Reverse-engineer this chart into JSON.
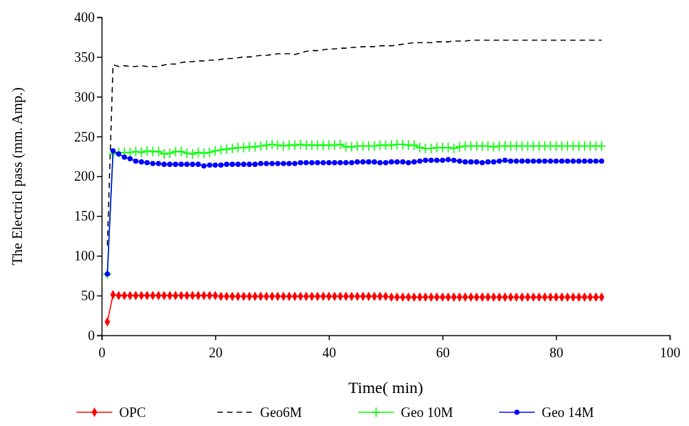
{
  "chart_data": {
    "type": "line",
    "xlabel": "Time( min)",
    "ylabel": "The Electricl pass (mm. Amp.)",
    "x": [
      1,
      2,
      3,
      4,
      5,
      6,
      7,
      8,
      9,
      10,
      11,
      12,
      13,
      14,
      15,
      16,
      17,
      18,
      19,
      20,
      21,
      22,
      23,
      24,
      25,
      26,
      27,
      28,
      29,
      30,
      31,
      32,
      33,
      34,
      35,
      36,
      37,
      38,
      39,
      40,
      41,
      42,
      43,
      44,
      45,
      46,
      47,
      48,
      49,
      50,
      51,
      52,
      53,
      54,
      55,
      56,
      57,
      58,
      59,
      60,
      61,
      62,
      63,
      64,
      65,
      66,
      67,
      68,
      69,
      70,
      71,
      72,
      73,
      74,
      75,
      76,
      77,
      78,
      79,
      80,
      81,
      82,
      83,
      84,
      85,
      86,
      87,
      88
    ],
    "xlim": [
      0,
      100
    ],
    "xticks": [
      0,
      20,
      40,
      60,
      80,
      100
    ],
    "ylim": [
      0,
      400
    ],
    "yticks": [
      0,
      50,
      100,
      150,
      200,
      250,
      300,
      350,
      400
    ],
    "grid": false,
    "legend": "bottom",
    "series": [
      {
        "name": "OPC",
        "color": "#ff0000",
        "marker": "diamond",
        "line_style": "solid",
        "values": [
          17,
          51,
          50,
          50,
          50,
          50,
          50,
          50,
          50,
          50,
          50,
          50,
          50,
          50,
          50,
          50,
          50,
          50,
          50,
          50,
          49,
          49,
          49,
          49,
          49,
          49,
          49,
          49,
          49,
          49,
          49,
          49,
          49,
          49,
          49,
          49,
          49,
          49,
          49,
          49,
          49,
          49,
          49,
          49,
          49,
          49,
          49,
          49,
          49,
          49,
          48,
          48,
          48,
          48,
          48,
          48,
          48,
          48,
          48,
          48,
          48,
          48,
          48,
          48,
          48,
          48,
          48,
          48,
          48,
          48,
          48,
          48,
          48,
          48,
          48,
          48,
          48,
          48,
          48,
          48,
          48,
          48,
          48,
          48,
          48,
          48,
          48,
          48
        ]
      },
      {
        "name": "Geo6M",
        "color": "#000000",
        "marker": "none",
        "line_style": "dashed",
        "values": [
          113,
          340,
          338,
          339,
          338,
          338,
          339,
          338,
          338,
          338,
          340,
          341,
          341,
          343,
          344,
          344,
          345,
          345,
          346,
          346,
          347,
          348,
          348,
          349,
          350,
          350,
          351,
          352,
          352,
          353,
          354,
          354,
          354,
          353,
          355,
          357,
          358,
          358,
          359,
          360,
          360,
          361,
          361,
          362,
          362,
          363,
          363,
          363,
          364,
          364,
          364,
          365,
          366,
          367,
          368,
          368,
          368,
          368,
          369,
          369,
          369,
          370,
          370,
          370,
          371,
          371,
          371,
          371,
          371,
          371,
          371,
          371,
          371,
          371,
          371,
          371,
          371,
          371,
          371,
          371,
          371,
          371,
          371,
          371,
          371,
          371,
          371,
          371
        ]
      },
      {
        "name": "Geo 10M",
        "color": "#00ff00",
        "marker": "cross",
        "line_style": "solid",
        "values": [
          77,
          228,
          230,
          230,
          230,
          231,
          230,
          232,
          231,
          231,
          228,
          229,
          231,
          231,
          229,
          228,
          230,
          229,
          230,
          232,
          233,
          234,
          235,
          236,
          236,
          237,
          237,
          238,
          239,
          240,
          239,
          238,
          239,
          239,
          240,
          239,
          239,
          239,
          239,
          239,
          239,
          240,
          237,
          237,
          238,
          238,
          238,
          238,
          239,
          239,
          239,
          240,
          240,
          239,
          239,
          236,
          235,
          235,
          236,
          236,
          236,
          235,
          237,
          238,
          238,
          238,
          238,
          238,
          237,
          238,
          238,
          238,
          238,
          238,
          238,
          238,
          238,
          238,
          238,
          238,
          238,
          238,
          238,
          238,
          238,
          238,
          238,
          238
        ]
      },
      {
        "name": "Geo 14M",
        "color": "#0000ff",
        "marker": "circle",
        "line_style": "solid",
        "values": [
          77,
          232,
          228,
          224,
          222,
          219,
          218,
          217,
          216,
          216,
          215,
          215,
          215,
          215,
          215,
          215,
          215,
          213,
          214,
          214,
          214,
          215,
          215,
          215,
          215,
          215,
          215,
          216,
          216,
          216,
          216,
          216,
          216,
          216,
          217,
          217,
          217,
          217,
          217,
          217,
          217,
          217,
          217,
          217,
          218,
          218,
          218,
          218,
          217,
          217,
          218,
          218,
          218,
          217,
          218,
          219,
          220,
          220,
          220,
          220,
          221,
          220,
          219,
          218,
          218,
          218,
          217,
          218,
          218,
          219,
          220,
          219,
          219,
          219,
          219,
          219,
          219,
          219,
          219,
          219,
          219,
          219,
          219,
          219,
          219,
          219,
          219,
          219
        ]
      }
    ]
  }
}
